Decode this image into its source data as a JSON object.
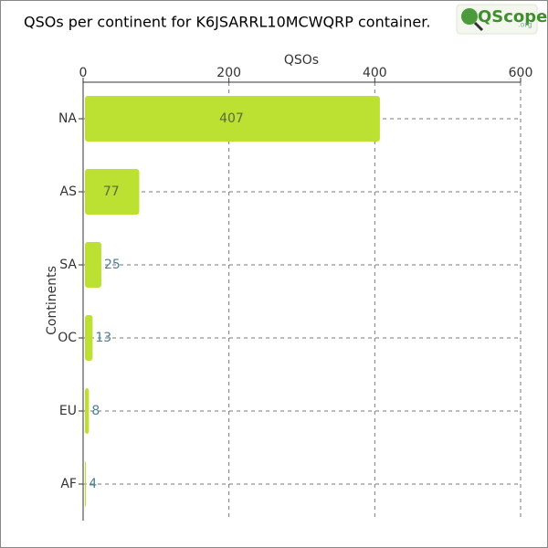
{
  "chart_data": {
    "type": "bar",
    "orientation": "horizontal",
    "title": "QSOs per continent for K6JSARRL10MCWQRP container.",
    "xlabel": "QSOs",
    "ylabel": "Continents",
    "categories": [
      "NA",
      "AS",
      "SA",
      "OC",
      "EU",
      "AF"
    ],
    "values": [
      407,
      77,
      25,
      13,
      8,
      4
    ],
    "color": "#bde133",
    "xlim": [
      0,
      600
    ],
    "xticks": [
      0,
      200,
      400,
      600
    ],
    "grid": true
  },
  "logo": {
    "text": "QScope",
    "suffix": ".org"
  }
}
